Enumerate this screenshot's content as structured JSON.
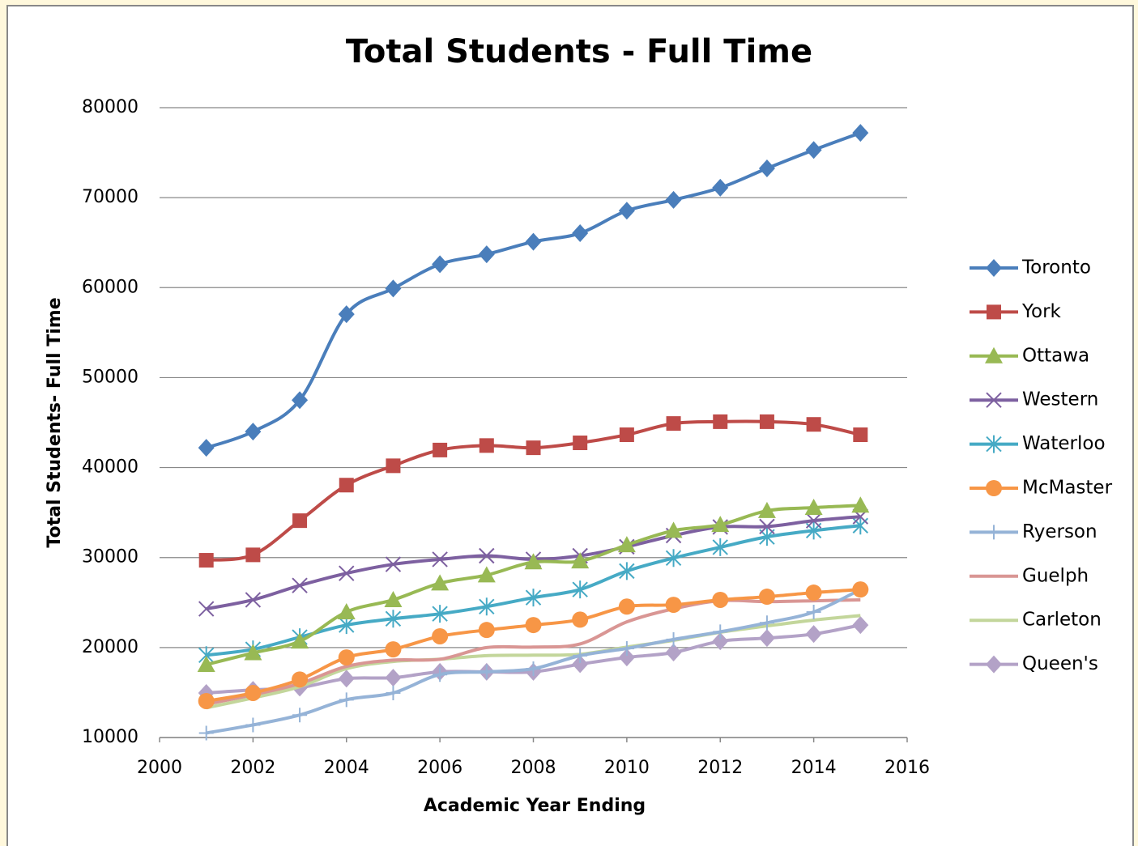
{
  "chart_data": {
    "type": "line",
    "title": "Total Students - Full Time",
    "x_label": "Academic Year Ending",
    "y_label": "Total Students- Full Time",
    "x": [
      2001,
      2002,
      2003,
      2004,
      2005,
      2006,
      2007,
      2008,
      2009,
      2010,
      2011,
      2012,
      2013,
      2014,
      2015
    ],
    "xlim": [
      2000,
      2016
    ],
    "xticks": [
      2000,
      2002,
      2004,
      2006,
      2008,
      2010,
      2012,
      2014,
      2016
    ],
    "ylim": [
      10000,
      80000
    ],
    "yticks": [
      10000,
      20000,
      30000,
      40000,
      50000,
      60000,
      70000,
      80000
    ],
    "grid": true,
    "smooth": true,
    "legend": "right",
    "series": [
      {
        "name": "Toronto",
        "color": "#4a7ebb",
        "marker": "diamond",
        "values": [
          42200,
          44000,
          47500,
          57050,
          59900,
          62600,
          63700,
          65100,
          66050,
          68550,
          69750,
          71100,
          73250,
          75300,
          77200
        ]
      },
      {
        "name": "York",
        "color": "#be4b48",
        "marker": "square",
        "values": [
          29700,
          30300,
          34100,
          38050,
          40200,
          41950,
          42450,
          42200,
          42750,
          43650,
          44900,
          45100,
          45100,
          44800,
          43650
        ]
      },
      {
        "name": "Ottawa",
        "color": "#98b954",
        "marker": "triangle",
        "values": [
          18100,
          19400,
          20700,
          23950,
          25300,
          27150,
          28050,
          29500,
          29600,
          31400,
          33000,
          33650,
          35200,
          35550,
          35800
        ]
      },
      {
        "name": "Western",
        "color": "#7d60a0",
        "marker": "x",
        "values": [
          24300,
          25300,
          26900,
          28250,
          29250,
          29800,
          30200,
          29800,
          30200,
          31200,
          32450,
          33400,
          33450,
          34100,
          34550
        ]
      },
      {
        "name": "Waterloo",
        "color": "#46aac5",
        "marker": "star",
        "values": [
          19150,
          19800,
          21150,
          22500,
          23200,
          23750,
          24550,
          25550,
          26450,
          28500,
          29950,
          31150,
          32300,
          33000,
          33550
        ]
      },
      {
        "name": "McMaster",
        "color": "#f79646",
        "marker": "circle",
        "values": [
          14050,
          14950,
          16450,
          18900,
          19800,
          21250,
          21950,
          22500,
          23100,
          24550,
          24750,
          25300,
          25650,
          26100,
          26450
        ]
      },
      {
        "name": "Ryerson",
        "color": "#95b3d7",
        "marker": "plus",
        "values": [
          10500,
          11400,
          12500,
          14200,
          14950,
          17000,
          17300,
          17650,
          19100,
          19900,
          20900,
          21750,
          22750,
          23950,
          26450
        ]
      },
      {
        "name": "Guelph",
        "color": "#d99694",
        "marker": "none",
        "values": [
          13700,
          14750,
          16000,
          17900,
          18600,
          18700,
          20000,
          20050,
          20400,
          22850,
          24300,
          25200,
          25100,
          25200,
          25300
        ]
      },
      {
        "name": "Carleton",
        "color": "#c3d69b",
        "marker": "none",
        "values": [
          13300,
          14400,
          15650,
          17650,
          18450,
          18700,
          19100,
          19150,
          19250,
          20050,
          20800,
          21700,
          22400,
          23050,
          23550
        ]
      },
      {
        "name": "Queen's",
        "color": "#b3a2c7",
        "marker": "diamond",
        "values": [
          14950,
          15300,
          15550,
          16550,
          16650,
          17300,
          17300,
          17300,
          18150,
          18900,
          19450,
          20700,
          21050,
          21500,
          22500
        ]
      }
    ]
  }
}
